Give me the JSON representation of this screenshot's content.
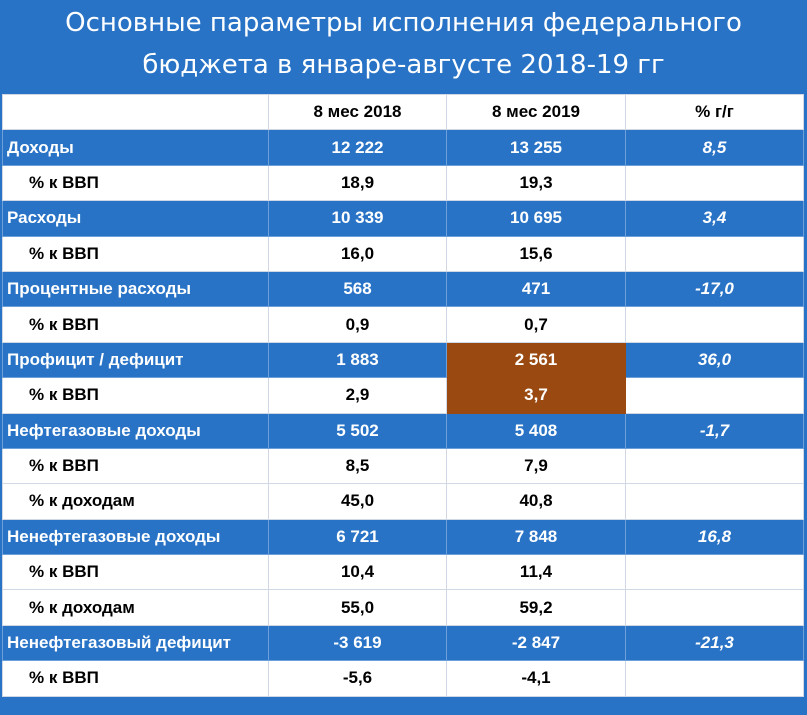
{
  "title_lines": [
    "Основные параметры исполнения федерального",
    "бюджета в январе-августе 2018-19 гг"
  ],
  "chart_data": {
    "type": "table",
    "columns": [
      "",
      "8 мес 2018",
      "8 мес 2019",
      "% г/г"
    ],
    "rows": [
      {
        "kind": "main",
        "label": "Доходы",
        "v2018": "12 222",
        "v2019": "13 255",
        "yoy": "8,5"
      },
      {
        "kind": "sub",
        "label": "% к ВВП",
        "v2018": "18,9",
        "v2019": "19,3",
        "yoy": ""
      },
      {
        "kind": "main",
        "label": "Расходы",
        "v2018": "10 339",
        "v2019": "10 695",
        "yoy": "3,4"
      },
      {
        "kind": "sub",
        "label": "% к ВВП",
        "v2018": "16,0",
        "v2019": "15,6",
        "yoy": ""
      },
      {
        "kind": "main",
        "label": "Процентные расходы",
        "v2018": "568",
        "v2019": "471",
        "yoy": "-17,0"
      },
      {
        "kind": "sub",
        "label": "% к ВВП",
        "v2018": "0,9",
        "v2019": "0,7",
        "yoy": ""
      },
      {
        "kind": "main",
        "label": "Профицит / дефицит",
        "v2018": "1 883",
        "v2019": "2 561",
        "yoy": "36,0"
      },
      {
        "kind": "sub",
        "label": "% к ВВП",
        "v2018": "2,9",
        "v2019": "3,7",
        "yoy": ""
      },
      {
        "kind": "main",
        "label": "Нефтегазовые доходы",
        "v2018": "5 502",
        "v2019": "5 408",
        "yoy": "-1,7"
      },
      {
        "kind": "sub",
        "label": "% к ВВП",
        "v2018": "8,5",
        "v2019": "7,9",
        "yoy": ""
      },
      {
        "kind": "sub",
        "label": "% к доходам",
        "v2018": "45,0",
        "v2019": "40,8",
        "yoy": ""
      },
      {
        "kind": "main",
        "label": "Ненефтегазовые доходы",
        "v2018": "6 721",
        "v2019": "7 848",
        "yoy": "16,8"
      },
      {
        "kind": "sub",
        "label": "% к ВВП",
        "v2018": "10,4",
        "v2019": "11,4",
        "yoy": ""
      },
      {
        "kind": "sub",
        "label": "% к доходам",
        "v2018": "55,0",
        "v2019": "59,2",
        "yoy": ""
      },
      {
        "kind": "main",
        "label": "Ненефтегазовый дефицит",
        "v2018": "-3 619",
        "v2019": "-2 847",
        "yoy": "-21,3"
      },
      {
        "kind": "sub",
        "label": "% к ВВП",
        "v2018": "-5,6",
        "v2019": "-4,1",
        "yoy": ""
      }
    ],
    "highlight_color": "#9a4a10",
    "header_bg": "#2873c6"
  }
}
